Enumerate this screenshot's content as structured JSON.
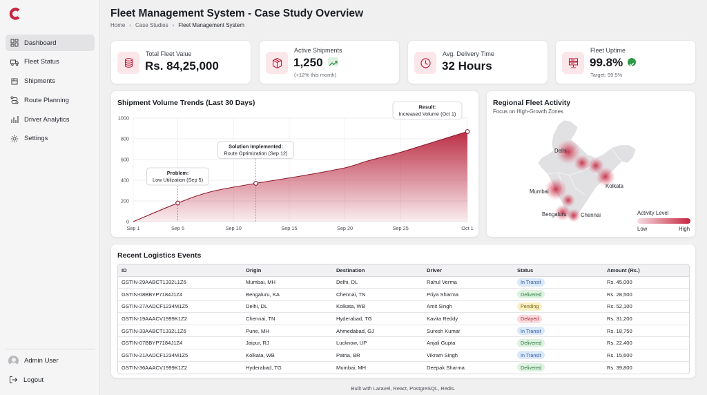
{
  "brand": {
    "accent": "#c8243f"
  },
  "sidebar": {
    "items": [
      {
        "label": "Dashboard",
        "icon": "dashboard-icon",
        "active": true
      },
      {
        "label": "Fleet Status",
        "icon": "truck-icon"
      },
      {
        "label": "Shipments",
        "icon": "box-icon"
      },
      {
        "label": "Route Planning",
        "icon": "route-icon"
      },
      {
        "label": "Driver Analytics",
        "icon": "bar-chart-icon"
      },
      {
        "label": "Settings",
        "icon": "gear-icon"
      }
    ],
    "user": "Admin User",
    "logout": "Logout"
  },
  "header": {
    "title": "Fleet Management System - Case Study Overview",
    "breadcrumb": [
      "Home",
      "Case Studies",
      "Fleet Management System"
    ]
  },
  "kpis": [
    {
      "label": "Total Fleet Value",
      "value": "Rs. 84,25,000",
      "icon": "coins-icon"
    },
    {
      "label": "Active Shipments",
      "value": "1,250",
      "sub": "(+12% this month)",
      "icon": "package-icon"
    },
    {
      "label": "Avg. Delivery Time",
      "value": "32 Hours",
      "icon": "clock-icon"
    },
    {
      "label": "Fleet Uptime",
      "value": "99.8%",
      "sub": "Target: 99.5%",
      "icon": "server-icon"
    }
  ],
  "trend": {
    "title": "Shipment Volume Trends (Last 30 Days)"
  },
  "chart_data": {
    "type": "area",
    "title": "Shipment Volume Trends (Last 30 Days)",
    "xlabel": "",
    "ylabel": "",
    "ylim": [
      0,
      1000
    ],
    "yticks": [
      0,
      200,
      400,
      600,
      800,
      1000
    ],
    "xticks": [
      "Sep 1",
      "Sep 5",
      "Sep 10",
      "Sep 15",
      "Sep 20",
      "Sep 25",
      "Oct 1"
    ],
    "x": [
      "Sep 1",
      "Sep 5",
      "Sep 8",
      "Sep 12",
      "Sep 16",
      "Sep 20",
      "Sep 22",
      "Sep 25",
      "Sep 28",
      "Oct 1"
    ],
    "values": [
      0,
      180,
      290,
      370,
      440,
      520,
      585,
      670,
      770,
      870
    ],
    "grid": true,
    "annotations": [
      {
        "title": "Problem:",
        "text": "Low Utilization (Sep 5)",
        "x": "Sep 5",
        "y": 180
      },
      {
        "title": "Solution Implemented:",
        "text": "Route Optimization (Sep 12)",
        "x": "Sep 12",
        "y": 370
      },
      {
        "title": "Result:",
        "text": "Increased Volume (Oct 1)",
        "x": "Oct 1",
        "y": 870
      }
    ]
  },
  "regional": {
    "title": "Regional Fleet Activity",
    "subtitle": "Focus on High-Growth Zones",
    "cities": [
      "Delhi",
      "Kolkata",
      "Mumbai",
      "Bengaluru",
      "Chennai"
    ],
    "legend": {
      "title": "Activity Level",
      "low": "Low",
      "high": "High"
    }
  },
  "events": {
    "title": "Recent Logistics Events",
    "columns": [
      "ID",
      "Origin",
      "Destination",
      "Driver",
      "Status",
      "Amount (Rs.)"
    ],
    "rows": [
      [
        "GSTIN-29AABCT1332L1Z6",
        "Mumbai, MH",
        "Delhi, DL",
        "Rahul Verma",
        "In Transit",
        "Rs. 45,000"
      ],
      [
        "GSTIN-08BBYP7184J1Z4",
        "Bengaluru, KA",
        "Chennai, TN",
        "Priya Sharma",
        "Delivered",
        "Rs. 28,500"
      ],
      [
        "GSTIN-27AADCF1234M1Z5",
        "Delhi, DL",
        "Kolkata, WB",
        "Amit Singh",
        "Pending",
        "Rs. 52,100"
      ],
      [
        "GSTIN-19AAACV1999K1Z2",
        "Chennai, TN",
        "Hyderabad, TG",
        "Kavita Reddy",
        "Delayed",
        "Rs. 31,200"
      ],
      [
        "GSTIN-33AABCT1332L1Z6",
        "Pune, MH",
        "Ahmedabad, GJ",
        "Suresh Kumar",
        "In Transit",
        "Rs. 18,750"
      ],
      [
        "GSTIN-07BBYP7184J1Z4",
        "Jaipur, RJ",
        "Lucknow, UP",
        "Anjali Gupta",
        "Delivered",
        "Rs. 22,400"
      ],
      [
        "GSTIN-21AADCF1234M1Z5",
        "Kolkata, WB",
        "Patna, BR",
        "Vikram Singh",
        "In Transit",
        "Rs. 15,600"
      ],
      [
        "GSTIN-36AAACV1999K1Z2",
        "Hyderabad, TG",
        "Mumbai, MH",
        "Deepak Sharma",
        "Delivered",
        "Rs. 39,800"
      ]
    ]
  },
  "footer": "Built with Laravel, React, PostgreSQL, Redis."
}
